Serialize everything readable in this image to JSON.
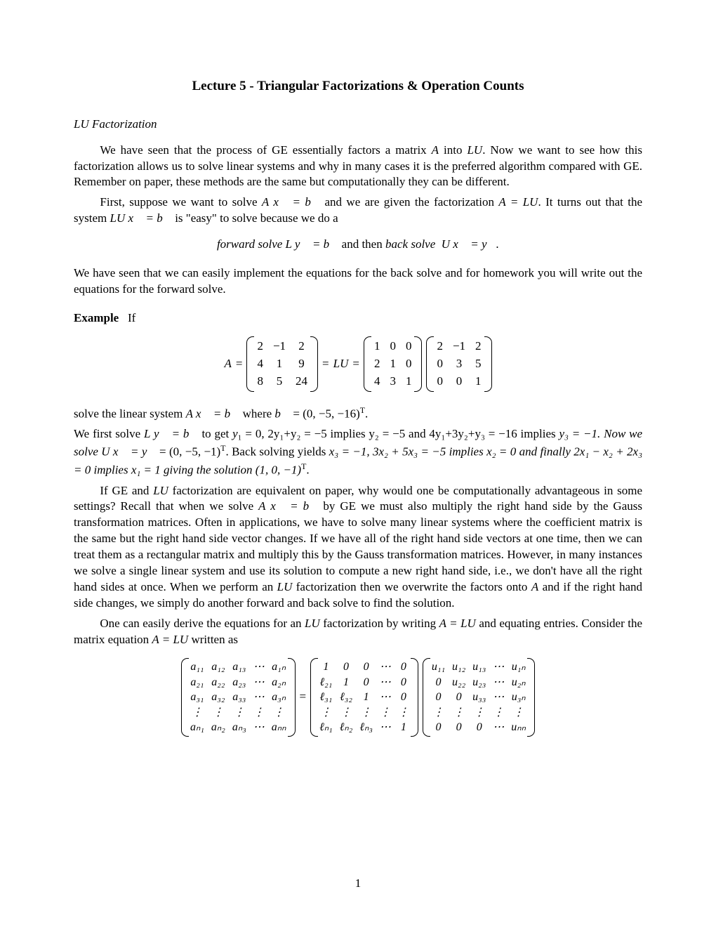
{
  "title": "Lecture 5 - Triangular Factorizations & Operation Counts",
  "section1": "LU Factorization",
  "para1a": "We have seen that the process of GE essentially factors a matrix ",
  "para1b": " into ",
  "para1c": ". Now we want to see how this factorization allows us to solve linear systems and why in many cases it is the preferred algorithm compared with GE. Remember on paper, these methods are the same but computationally they can be different.",
  "para2a": "First, suppose we want to solve ",
  "para2b": " and we are given the factorization ",
  "para2c": ". It turns out that the system ",
  "para2d": " is \"easy\" to solve because we do a",
  "eq1a": "forward solve ",
  "eq1b": " and then ",
  "eq1c": "back solve ",
  "para3": "We have seen that we can easily implement the equations for the back solve and for homework you will write out the equations for the forward solve.",
  "example_label": "Example",
  "example_if": "If",
  "A_label": "A",
  "eq_sym": "=",
  "LU_label": "LU",
  "matrix_A": {
    "rows": [
      [
        "2",
        "−1",
        "2"
      ],
      [
        "4",
        "1",
        "9"
      ],
      [
        "8",
        "5",
        "24"
      ]
    ]
  },
  "matrix_L": {
    "rows": [
      [
        "1",
        "0",
        "0"
      ],
      [
        "2",
        "1",
        "0"
      ],
      [
        "4",
        "3",
        "1"
      ]
    ]
  },
  "matrix_U": {
    "rows": [
      [
        "2",
        "−1",
        "2"
      ],
      [
        "0",
        "3",
        "5"
      ],
      [
        "0",
        "0",
        "1"
      ]
    ]
  },
  "para4a": "solve the linear system ",
  "para4b": " where ",
  "para4c": " = (0, −5, −16)",
  "para4d": ".",
  "T_sup": "T",
  "para5a": "We first solve ",
  "para5b": " to get ",
  "para5c": "y",
  "para5_y1": "₁ = 0, 2y₁+y₂ = −5 implies y₂ = −5 and 4y₁+3y₂+y₃ = −16",
  "para5d": " implies ",
  "para5e": "y₃ = −1. Now we solve ",
  "para5f": " = (0, −5, −1)",
  "para5g": ". Back solving yields ",
  "para5h": "x₃ = −1, 3x₂ + 5x₃ = −5 implies x₂ = 0 and finally 2x₁ − x₂ + 2x₃ = 0 implies x₁ = 1 giving the solution (1, 0, −1)",
  "para6a": "If GE and ",
  "para6b": " factorization are equivalent on paper, why would one be computationally advantageous in some settings? Recall that when we solve ",
  "para6c": " by GE we must also multiply the right hand side by the Gauss transformation matrices. Often in applications, we have to solve many linear systems where the coefficient matrix is the same but the right hand side vector changes. If we have all of the right hand side vectors at one time, then we can treat them as a rectangular matrix and multiply this by the Gauss transformation matrices. However, in many instances we solve a single linear system and use its solution to compute a new right hand side, i.e., we don't have all the right hand sides at once. When we perform an ",
  "para6d": " factorization then we overwrite the factors onto ",
  "para6e": " and if the right hand side changes, we simply do another forward and back solve to find the solution.",
  "para7a": "One can easily derive the equations for an ",
  "para7b": " factorization by writing ",
  "para7c": " and equating entries. Consider the matrix equation ",
  "para7d": " written as",
  "big_A": {
    "rows": [
      [
        "a₁₁",
        "a₁₂",
        "a₁₃",
        "⋯",
        "a₁ₙ"
      ],
      [
        "a₂₁",
        "a₂₂",
        "a₂₃",
        "⋯",
        "a₂ₙ"
      ],
      [
        "a₃₁",
        "a₃₂",
        "a₃₃",
        "⋯",
        "a₃ₙ"
      ],
      [
        "⋮",
        "⋮",
        "⋮",
        "⋮",
        "⋮"
      ],
      [
        "aₙ₁",
        "aₙ₂",
        "aₙ₃",
        "⋯",
        "aₙₙ"
      ]
    ]
  },
  "big_L": {
    "rows": [
      [
        "1",
        "0",
        "0",
        "⋯",
        "0"
      ],
      [
        "ℓ₂₁",
        "1",
        "0",
        "⋯",
        "0"
      ],
      [
        "ℓ₃₁",
        "ℓ₃₂",
        "1",
        "⋯",
        "0"
      ],
      [
        "⋮",
        "⋮",
        "⋮",
        "⋮",
        "⋮"
      ],
      [
        "ℓₙ₁",
        "ℓₙ₂",
        "ℓₙ₃",
        "⋯",
        "1"
      ]
    ]
  },
  "big_U": {
    "rows": [
      [
        "u₁₁",
        "u₁₂",
        "u₁₃",
        "⋯",
        "u₁ₙ"
      ],
      [
        "0",
        "u₂₂",
        "u₂₃",
        "⋯",
        "u₂ₙ"
      ],
      [
        "0",
        "0",
        "u₃₃",
        "⋯",
        "u₃ₙ"
      ],
      [
        "⋮",
        "⋮",
        "⋮",
        "⋮",
        "⋮"
      ],
      [
        "0",
        "0",
        "0",
        "⋯",
        "uₙₙ"
      ]
    ]
  },
  "pagenum": "1",
  "sym": {
    "A": "A",
    "LU": "LU",
    "Ax_eq_b": "A x⃗ = b⃗",
    "A_eq_LU": "A = LU",
    "LUx_eq_b": "LU x⃗ = b⃗",
    "Ly_eq_b": "L y⃗ = b⃗",
    "Ux_eq_y": "U x⃗ = y⃗.",
    "b": "b⃗",
    "Ux_eq_y2": "U x⃗ = y⃗"
  },
  "colors": {
    "text": "#000000",
    "bg": "#ffffff"
  },
  "fontsize": {
    "body": 17,
    "title": 19
  }
}
